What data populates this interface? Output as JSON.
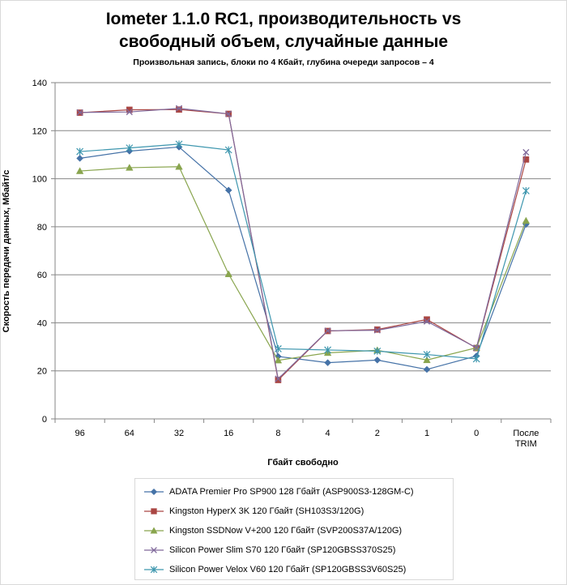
{
  "title_line1": "Iometer 1.1.0 RC1, производительность vs",
  "title_line2": "свободный объем, случайные данные",
  "subtitle": "Произвольная  запись, блоки по 4 Кбайт, глубина очереди запросов – 4",
  "chart_data": {
    "type": "line",
    "categories": [
      "96",
      "64",
      "32",
      "16",
      "8",
      "4",
      "2",
      "1",
      "0",
      "После TRIM"
    ],
    "xlabel": "Гбайт свободно",
    "ylabel": "Скорость передачи данных, Мбайт/с",
    "ylim": [
      0,
      140
    ],
    "yticks": [
      0,
      20,
      40,
      60,
      80,
      100,
      120,
      140
    ],
    "grid": true,
    "legend_position": "bottom",
    "series": [
      {
        "name": "ADATA  Premier Pro SP900 128 Гбайт (ASP900S3-128GM-C)",
        "color": "#4572A7",
        "marker": "diamond",
        "values": [
          108.5,
          111.5,
          113.2,
          95.2,
          26.0,
          23.4,
          24.5,
          20.6,
          26.2,
          81.0
        ]
      },
      {
        "name": "Kingston HyperX 3K 120 Гбайт (SH103S3/120G)",
        "color": "#AA4643",
        "marker": "square",
        "values": [
          127.5,
          128.7,
          128.8,
          127.0,
          16.2,
          36.6,
          37.2,
          41.4,
          29.5,
          108.0
        ]
      },
      {
        "name": "Kingston SSDNow  V+200 120 Гбайт (SVP200S37A/120G)",
        "color": "#89A54E",
        "marker": "triangle",
        "values": [
          103.2,
          104.6,
          105.0,
          60.3,
          24.4,
          27.5,
          28.6,
          24.5,
          29.6,
          82.5
        ]
      },
      {
        "name": "Silicon Power Slim S70 120 Гбайт (SP120GBSS370S25)",
        "color": "#80699B",
        "marker": "x",
        "values": [
          127.6,
          127.8,
          129.3,
          127.0,
          16.7,
          36.7,
          36.9,
          40.6,
          29.6,
          111.0
        ]
      },
      {
        "name": "Silicon Power Velox V60 120 Гбайт (SP120GBSS3V60S25)",
        "color": "#3D96AE",
        "marker": "asterisk",
        "values": [
          111.3,
          112.8,
          114.4,
          112.0,
          29.2,
          28.7,
          28.2,
          26.8,
          25.0,
          95.0
        ]
      }
    ]
  }
}
